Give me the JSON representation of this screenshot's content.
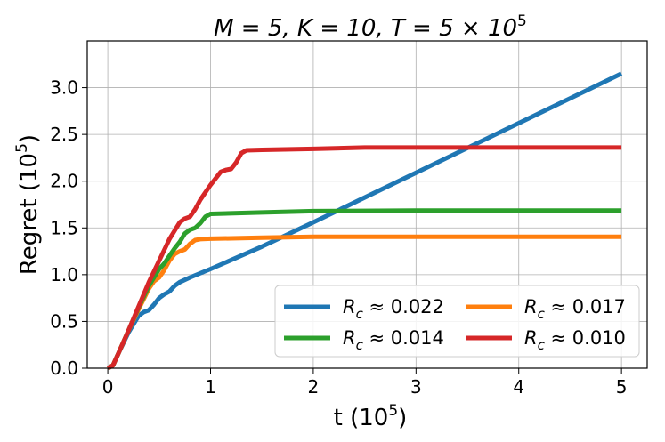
{
  "chart_data": {
    "type": "line",
    "title": {
      "main": "M = 5, K = 10, T = 5 × 10",
      "sup": "5"
    },
    "xlabel": {
      "main": "t (10",
      "sup": "5",
      "end": ")"
    },
    "ylabel": {
      "main": "Regret (10",
      "sup": "5",
      "end": ")"
    },
    "xlim": [
      -0.2,
      5.25
    ],
    "ylim": [
      0.0,
      3.5
    ],
    "xticks": [
      0,
      1,
      2,
      3,
      4,
      5
    ],
    "xtick_labels": [
      "0",
      "1",
      "2",
      "3",
      "4",
      "5"
    ],
    "yticks": [
      0.0,
      0.5,
      1.0,
      1.5,
      2.0,
      2.5,
      3.0
    ],
    "ytick_labels": [
      "0.0",
      "0.5",
      "1.0",
      "1.5",
      "2.0",
      "2.5",
      "3.0"
    ],
    "grid": true,
    "legend_position": "bottom-right",
    "legend_columns": 2,
    "series": [
      {
        "name": "R_c ≈ 0.022",
        "label_base": "R",
        "label_sub": "c",
        "label_rest": " ≈ 0.022",
        "color": "#1f77b4",
        "x": [
          0,
          0.05,
          0.1,
          0.2,
          0.3,
          0.35,
          0.4,
          0.45,
          0.5,
          0.55,
          0.6,
          0.65,
          0.7,
          0.8,
          1.0,
          1.5,
          2.0,
          3.0,
          4.0,
          5.0
        ],
        "y": [
          0,
          0.03,
          0.15,
          0.38,
          0.56,
          0.6,
          0.62,
          0.68,
          0.75,
          0.79,
          0.82,
          0.88,
          0.92,
          0.97,
          1.06,
          1.3,
          1.56,
          2.09,
          2.62,
          3.15
        ]
      },
      {
        "name": "R_c ≈ 0.017",
        "label_base": "R",
        "label_sub": "c",
        "label_rest": " ≈ 0.017",
        "color": "#ff7f0e",
        "x": [
          0,
          0.05,
          0.1,
          0.2,
          0.3,
          0.4,
          0.45,
          0.5,
          0.55,
          0.6,
          0.65,
          0.7,
          0.75,
          0.8,
          0.85,
          0.9,
          1.0,
          1.5,
          2.0,
          3.0,
          4.0,
          5.0
        ],
        "y": [
          0,
          0.03,
          0.15,
          0.4,
          0.63,
          0.85,
          0.93,
          0.97,
          1.05,
          1.15,
          1.22,
          1.25,
          1.27,
          1.33,
          1.37,
          1.38,
          1.385,
          1.395,
          1.405,
          1.405,
          1.405,
          1.405
        ]
      },
      {
        "name": "R_c ≈ 0.014",
        "label_base": "R",
        "label_sub": "c",
        "label_rest": " ≈ 0.014",
        "color": "#2ca02c",
        "x": [
          0,
          0.05,
          0.1,
          0.2,
          0.3,
          0.4,
          0.5,
          0.55,
          0.6,
          0.65,
          0.7,
          0.75,
          0.8,
          0.85,
          0.9,
          0.95,
          1.0,
          1.5,
          2.0,
          3.0,
          4.0,
          5.0
        ],
        "y": [
          0,
          0.03,
          0.15,
          0.4,
          0.65,
          0.88,
          1.06,
          1.12,
          1.2,
          1.28,
          1.35,
          1.44,
          1.48,
          1.5,
          1.55,
          1.62,
          1.65,
          1.665,
          1.68,
          1.685,
          1.685,
          1.685
        ]
      },
      {
        "name": "R_c ≈ 0.010",
        "label_base": "R",
        "label_sub": "c",
        "label_rest": " ≈ 0.010",
        "color": "#d62728",
        "x": [
          0,
          0.05,
          0.1,
          0.2,
          0.3,
          0.4,
          0.5,
          0.6,
          0.7,
          0.75,
          0.8,
          0.85,
          0.9,
          1.0,
          1.1,
          1.15,
          1.2,
          1.25,
          1.3,
          1.35,
          1.5,
          2.0,
          2.5,
          3.0,
          4.0,
          5.0
        ],
        "y": [
          0,
          0.03,
          0.15,
          0.4,
          0.66,
          0.92,
          1.15,
          1.38,
          1.56,
          1.6,
          1.62,
          1.7,
          1.8,
          1.96,
          2.1,
          2.12,
          2.13,
          2.2,
          2.3,
          2.33,
          2.335,
          2.345,
          2.36,
          2.36,
          2.36,
          2.36
        ]
      }
    ]
  }
}
